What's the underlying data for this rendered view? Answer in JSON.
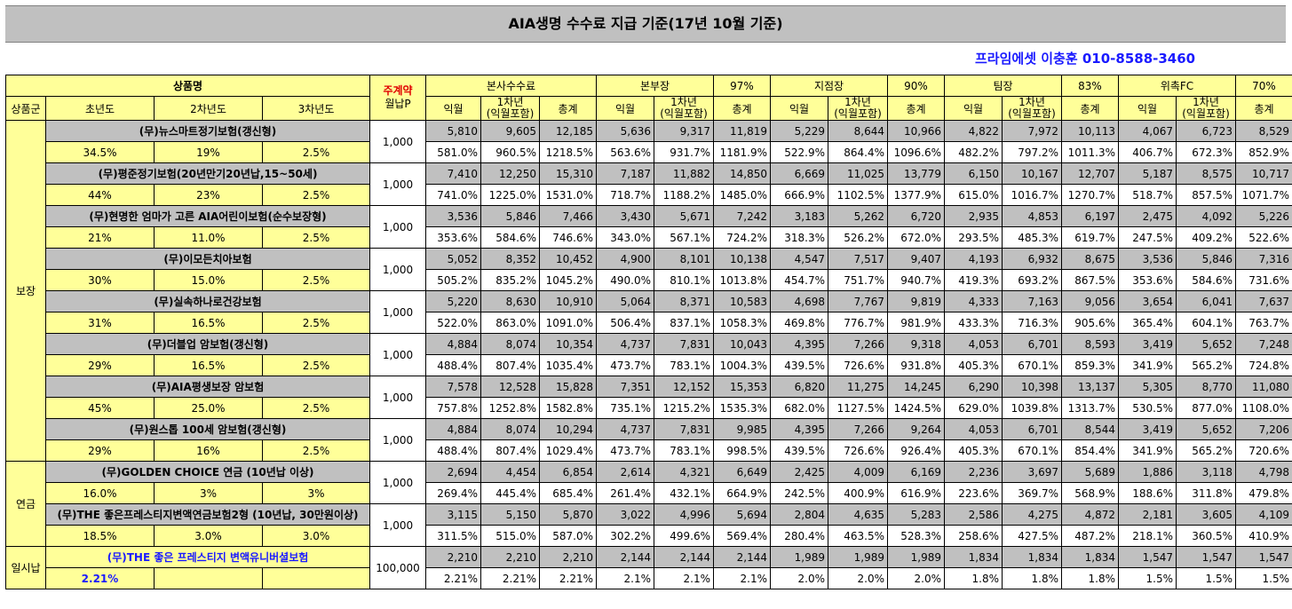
{
  "title": "AIA생명 수수료 지급 기준(17년 10월 기준)",
  "contact": "프라임에셋 이충훈 010-8588-3460",
  "header": {
    "product_name": "상품명",
    "main_contract": "주계약",
    "monthly_premium": "월납P",
    "product_group": "상품군",
    "year1": "초년도",
    "year2": "2차년도",
    "year3": "3차년도",
    "ikwol": "익월",
    "first_year": "1차년",
    "first_year_sub": "(익월포함)",
    "total": "총계",
    "groups": [
      {
        "label": "본사수수료",
        "pct": ""
      },
      {
        "label": "본부장",
        "pct": "97%"
      },
      {
        "label": "지점장",
        "pct": "90%"
      },
      {
        "label": "팀장",
        "pct": "83%"
      },
      {
        "label": "위촉FC",
        "pct": "70%"
      }
    ]
  },
  "categories": [
    {
      "name": "보장",
      "rows": 16
    },
    {
      "name": "연금",
      "rows": 4
    },
    {
      "name": "일시납",
      "rows": 2
    }
  ],
  "products": [
    {
      "name": "(무)뉴스마트정기보험(갱신형)",
      "premium": "1,000",
      "y1": "34.5%",
      "y2": "19%",
      "y3": "2.5%",
      "amounts": [
        "5,810",
        "9,605",
        "12,185",
        "5,636",
        "9,317",
        "11,819",
        "5,229",
        "8,644",
        "10,966",
        "4,822",
        "7,972",
        "10,113",
        "4,067",
        "6,723",
        "8,529"
      ],
      "rates": [
        "581.0%",
        "960.5%",
        "1218.5%",
        "563.6%",
        "931.7%",
        "1181.9%",
        "522.9%",
        "864.4%",
        "1096.6%",
        "482.2%",
        "797.2%",
        "1011.3%",
        "406.7%",
        "672.3%",
        "852.9%"
      ]
    },
    {
      "name": "(무)평준정기보험(20년만기20년납,15~50세)",
      "premium": "1,000",
      "y1": "44%",
      "y2": "23%",
      "y3": "2.5%",
      "amounts": [
        "7,410",
        "12,250",
        "15,310",
        "7,187",
        "11,882",
        "14,850",
        "6,669",
        "11,025",
        "13,779",
        "6,150",
        "10,167",
        "12,707",
        "5,187",
        "8,575",
        "10,717"
      ],
      "rates": [
        "741.0%",
        "1225.0%",
        "1531.0%",
        "718.7%",
        "1188.2%",
        "1485.0%",
        "666.9%",
        "1102.5%",
        "1377.9%",
        "615.0%",
        "1016.7%",
        "1270.7%",
        "518.7%",
        "857.5%",
        "1071.7%"
      ]
    },
    {
      "name": "(무)현명한 엄마가 고른 AIA어린이보험(순수보장형)",
      "premium": "1,000",
      "y1": "21%",
      "y2": "11.0%",
      "y3": "2.5%",
      "amounts": [
        "3,536",
        "5,846",
        "7,466",
        "3,430",
        "5,671",
        "7,242",
        "3,183",
        "5,262",
        "6,720",
        "2,935",
        "4,853",
        "6,197",
        "2,475",
        "4,092",
        "5,226"
      ],
      "rates": [
        "353.6%",
        "584.6%",
        "746.6%",
        "343.0%",
        "567.1%",
        "724.2%",
        "318.3%",
        "526.2%",
        "672.0%",
        "293.5%",
        "485.3%",
        "619.7%",
        "247.5%",
        "409.2%",
        "522.6%"
      ]
    },
    {
      "name": "(무)이모든치아보험",
      "premium": "1,000",
      "y1": "30%",
      "y2": "15.0%",
      "y3": "2.5%",
      "amounts": [
        "5,052",
        "8,352",
        "10,452",
        "4,900",
        "8,101",
        "10,138",
        "4,547",
        "7,517",
        "9,407",
        "4,193",
        "6,932",
        "8,675",
        "3,536",
        "5,846",
        "7,316"
      ],
      "rates": [
        "505.2%",
        "835.2%",
        "1045.2%",
        "490.0%",
        "810.1%",
        "1013.8%",
        "454.7%",
        "751.7%",
        "940.7%",
        "419.3%",
        "693.2%",
        "867.5%",
        "353.6%",
        "584.6%",
        "731.6%"
      ]
    },
    {
      "name": "(무)실속하나로건강보험",
      "premium": "1,000",
      "y1": "31%",
      "y2": "16.5%",
      "y3": "2.5%",
      "amounts": [
        "5,220",
        "8,630",
        "10,910",
        "5,064",
        "8,371",
        "10,583",
        "4,698",
        "7,767",
        "9,819",
        "4,333",
        "7,163",
        "9,056",
        "3,654",
        "6,041",
        "7,637"
      ],
      "rates": [
        "522.0%",
        "863.0%",
        "1091.0%",
        "506.4%",
        "837.1%",
        "1058.3%",
        "469.8%",
        "776.7%",
        "981.9%",
        "433.3%",
        "716.3%",
        "905.6%",
        "365.4%",
        "604.1%",
        "763.7%"
      ]
    },
    {
      "name": "(무)더블업 암보험(갱신형)",
      "premium": "1,000",
      "y1": "29%",
      "y2": "16.5%",
      "y3": "2.5%",
      "amounts": [
        "4,884",
        "8,074",
        "10,354",
        "4,737",
        "7,831",
        "10,043",
        "4,395",
        "7,266",
        "9,318",
        "4,053",
        "6,701",
        "8,593",
        "3,419",
        "5,652",
        "7,248"
      ],
      "rates": [
        "488.4%",
        "807.4%",
        "1035.4%",
        "473.7%",
        "783.1%",
        "1004.3%",
        "439.5%",
        "726.6%",
        "931.8%",
        "405.3%",
        "670.1%",
        "859.3%",
        "341.9%",
        "565.2%",
        "724.8%"
      ]
    },
    {
      "name": "(무)AIA평생보장 암보험",
      "premium": "1,000",
      "y1": "45%",
      "y2": "25.0%",
      "y3": "2.5%",
      "amounts": [
        "7,578",
        "12,528",
        "15,828",
        "7,351",
        "12,152",
        "15,353",
        "6,820",
        "11,275",
        "14,245",
        "6,290",
        "10,398",
        "13,137",
        "5,305",
        "8,770",
        "11,080"
      ],
      "rates": [
        "757.8%",
        "1252.8%",
        "1582.8%",
        "735.1%",
        "1215.2%",
        "1535.3%",
        "682.0%",
        "1127.5%",
        "1424.5%",
        "629.0%",
        "1039.8%",
        "1313.7%",
        "530.5%",
        "877.0%",
        "1108.0%"
      ]
    },
    {
      "name": "(무)원스톱 100세 암보험(갱신형)",
      "premium": "1,000",
      "y1": "29%",
      "y2": "16%",
      "y3": "2.5%",
      "amounts": [
        "4,884",
        "8,074",
        "10,294",
        "4,737",
        "7,831",
        "9,985",
        "4,395",
        "7,266",
        "9,264",
        "4,053",
        "6,701",
        "8,544",
        "3,419",
        "5,652",
        "7,206"
      ],
      "rates": [
        "488.4%",
        "807.4%",
        "1029.4%",
        "473.7%",
        "783.1%",
        "998.5%",
        "439.5%",
        "726.6%",
        "926.4%",
        "405.3%",
        "670.1%",
        "854.4%",
        "341.9%",
        "565.2%",
        "720.6%"
      ]
    },
    {
      "name": "(무)GOLDEN CHOICE 연금 (10년납 이상)",
      "premium": "1,000",
      "y1": "16.0%",
      "y2": "3%",
      "y3": "3%",
      "amounts": [
        "2,694",
        "4,454",
        "6,854",
        "2,614",
        "4,321",
        "6,649",
        "2,425",
        "4,009",
        "6,169",
        "2,236",
        "3,697",
        "5,689",
        "1,886",
        "3,118",
        "4,798"
      ],
      "rates": [
        "269.4%",
        "445.4%",
        "685.4%",
        "261.4%",
        "432.1%",
        "664.9%",
        "242.5%",
        "400.9%",
        "616.9%",
        "223.6%",
        "369.7%",
        "568.9%",
        "188.6%",
        "311.8%",
        "479.8%"
      ]
    },
    {
      "name": "(무)THE 좋은프레스티지변액연금보험2형 (10년납, 30만원이상)",
      "premium": "1,000",
      "y1": "18.5%",
      "y2": "3.0%",
      "y3": "3.0%",
      "amounts": [
        "3,115",
        "5,150",
        "5,870",
        "3,022",
        "4,996",
        "5,694",
        "2,804",
        "4,635",
        "5,283",
        "2,586",
        "4,275",
        "4,872",
        "2,181",
        "3,605",
        "4,109"
      ],
      "rates": [
        "311.5%",
        "515.0%",
        "587.0%",
        "302.2%",
        "499.6%",
        "569.4%",
        "280.4%",
        "463.5%",
        "528.3%",
        "258.6%",
        "427.5%",
        "487.2%",
        "218.1%",
        "360.5%",
        "410.9%"
      ]
    },
    {
      "name": "(무)THE 좋은 프레스티지 변액유니버셜보험",
      "premium": "100,000",
      "y1": "2.21%",
      "y2": "",
      "y3": "",
      "amounts": [
        "2,210",
        "2,210",
        "2,210",
        "2,144",
        "2,144",
        "2,144",
        "1,989",
        "1,989",
        "1,989",
        "1,834",
        "1,834",
        "1,834",
        "1,547",
        "1,547",
        "1,547"
      ],
      "rates": [
        "2.21%",
        "2.21%",
        "2.21%",
        "2.1%",
        "2.1%",
        "2.1%",
        "2.0%",
        "2.0%",
        "2.0%",
        "1.8%",
        "1.8%",
        "1.8%",
        "1.5%",
        "1.5%",
        "1.5%"
      ]
    }
  ],
  "colors": {
    "yellow": "#ffff99",
    "gray": "#c0c0c0",
    "blue": "#1a1aff",
    "red": "#e00000"
  }
}
